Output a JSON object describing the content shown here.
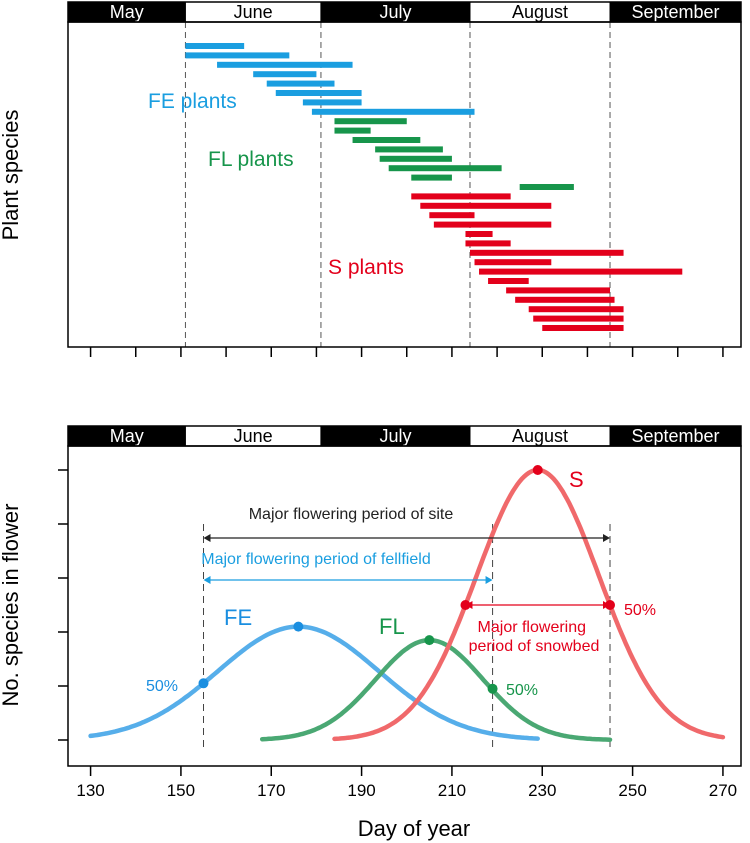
{
  "chart_data": [
    {
      "type": "gantt",
      "panel": "top",
      "ylabel": "Plant species",
      "x_range": [
        125,
        274
      ],
      "xticks": [
        130,
        140,
        150,
        160,
        170,
        180,
        190,
        200,
        210,
        220,
        230,
        240,
        250,
        260,
        270
      ],
      "months": [
        {
          "name": "May",
          "start": 125,
          "end": 151
        },
        {
          "name": "June",
          "start": 151,
          "end": 181
        },
        {
          "name": "July",
          "start": 181,
          "end": 214
        },
        {
          "name": "August",
          "start": 214,
          "end": 245
        },
        {
          "name": "September",
          "start": 245,
          "end": 274
        }
      ],
      "month_dividers": [
        151,
        181,
        214,
        245
      ],
      "groups": [
        {
          "name": "FE plants",
          "color": "#1a9ee0",
          "bars": [
            [
              151,
              164
            ],
            [
              151,
              174
            ],
            [
              158,
              188
            ],
            [
              166,
              180
            ],
            [
              169,
              184
            ],
            [
              171,
              190
            ],
            [
              177,
              190
            ],
            [
              179,
              215
            ]
          ]
        },
        {
          "name": "FL plants",
          "color": "#17954b",
          "bars": [
            [
              184,
              200
            ],
            [
              184,
              192
            ],
            [
              188,
              203
            ],
            [
              193,
              208
            ],
            [
              194,
              210
            ],
            [
              196,
              221
            ],
            [
              201,
              210
            ],
            [
              225,
              237
            ]
          ]
        },
        {
          "name": "S plants",
          "color": "#e3001b",
          "bars": [
            [
              201,
              223
            ],
            [
              203,
              232
            ],
            [
              205,
              215
            ],
            [
              206,
              232
            ],
            [
              213,
              219
            ],
            [
              213,
              223
            ],
            [
              214,
              248
            ],
            [
              215,
              232
            ],
            [
              216,
              261
            ],
            [
              218,
              227
            ],
            [
              222,
              245
            ],
            [
              224,
              246
            ],
            [
              227,
              248
            ],
            [
              228,
              248
            ],
            [
              230,
              248
            ]
          ]
        }
      ]
    },
    {
      "type": "line",
      "panel": "bottom",
      "xlabel": "Day of year",
      "ylabel": "No. species in flower",
      "x_range": [
        125,
        274
      ],
      "y_range": [
        0,
        1
      ],
      "xticks": [
        130,
        150,
        170,
        190,
        210,
        230,
        250,
        270
      ],
      "months": [
        {
          "name": "May",
          "start": 125,
          "end": 151
        },
        {
          "name": "June",
          "start": 151,
          "end": 181
        },
        {
          "name": "July",
          "start": 181,
          "end": 214
        },
        {
          "name": "August",
          "start": 214,
          "end": 245
        },
        {
          "name": "September",
          "start": 245,
          "end": 274
        }
      ],
      "series": [
        {
          "name": "FE",
          "color": "#56aeea",
          "peak_x": 176,
          "peak_y": 0.42,
          "half_width": 21,
          "x_start": 130,
          "x_end": 229
        },
        {
          "name": "FL",
          "color": "#4aa873",
          "peak_x": 205,
          "peak_y": 0.37,
          "half_width": 14,
          "x_start": 168,
          "x_end": 245
        },
        {
          "name": "S",
          "color": "#f0696b",
          "peak_x": 229,
          "peak_y": 1.0,
          "half_width": 16,
          "x_start": 184,
          "x_end": 270
        }
      ],
      "peak_markers": [
        {
          "series": "FE",
          "x": 176,
          "y": 0.42,
          "color": "#1a8ee0"
        },
        {
          "series": "FL",
          "x": 205,
          "y": 0.37,
          "color": "#17954b"
        },
        {
          "series": "S",
          "x": 229,
          "y": 1.0,
          "color": "#e3001b"
        }
      ],
      "half_markers": [
        {
          "series": "FE",
          "x": 155,
          "y": 0.21,
          "label": "50%",
          "color": "#1a8ee0"
        },
        {
          "series": "FL",
          "x": 219,
          "y": 0.19,
          "label": "50%",
          "color": "#17954b"
        },
        {
          "series": "S",
          "x": 213,
          "y": 0.5,
          "label": "",
          "color": "#e3001b"
        },
        {
          "series": "S",
          "x": 245,
          "y": 0.5,
          "label": "50%",
          "color": "#e3001b"
        }
      ],
      "vlines": [
        155,
        219,
        245
      ],
      "arrows": [
        {
          "label": "Major flowering period of site",
          "from": 155,
          "to": 245,
          "y": 0.85,
          "color": "#222222"
        },
        {
          "label": "Major flowering period of fellfield",
          "from": 155,
          "to": 219,
          "y": 0.6,
          "color": "#1a9ee0"
        },
        {
          "label": "Major flowering period of snowbed",
          "from": 213,
          "to": 245,
          "y": 0.5,
          "color": "#e3001b"
        }
      ]
    }
  ]
}
